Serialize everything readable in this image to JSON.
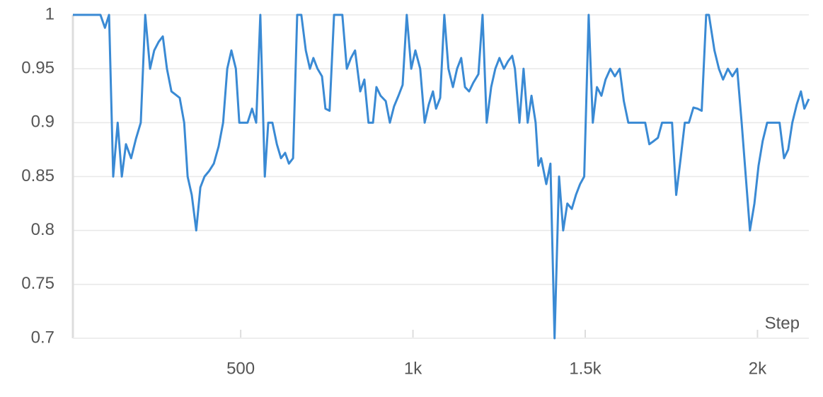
{
  "chart_data": {
    "type": "line",
    "x_label": "Step",
    "x": [
      13,
      93,
      106,
      118,
      130,
      143,
      155,
      167,
      182,
      196,
      210,
      223,
      237,
      249,
      262,
      274,
      286,
      299,
      311,
      323,
      336,
      346,
      358,
      371,
      383,
      395,
      408,
      422,
      436,
      449,
      461,
      473,
      486,
      496,
      508,
      520,
      533,
      545,
      557,
      570,
      580,
      592,
      605,
      617,
      629,
      640,
      652,
      664,
      676,
      689,
      701,
      711,
      723,
      736,
      746,
      758,
      771,
      783,
      795,
      808,
      820,
      832,
      847,
      859,
      871,
      884,
      894,
      906,
      921,
      933,
      945,
      958,
      970,
      982,
      995,
      1007,
      1021,
      1034,
      1046,
      1058,
      1067,
      1079,
      1091,
      1103,
      1116,
      1128,
      1140,
      1151,
      1163,
      1175,
      1190,
      1202,
      1214,
      1227,
      1239,
      1251,
      1264,
      1276,
      1288,
      1296,
      1309,
      1321,
      1333,
      1344,
      1356,
      1364,
      1372,
      1387,
      1399,
      1411,
      1424,
      1436,
      1448,
      1461,
      1473,
      1485,
      1497,
      1510,
      1522,
      1534,
      1547,
      1559,
      1573,
      1586,
      1600,
      1612,
      1625,
      1637,
      1649,
      1662,
      1674,
      1686,
      1699,
      1711,
      1723,
      1736,
      1752,
      1764,
      1777,
      1789,
      1801,
      1814,
      1826,
      1838,
      1851,
      1859,
      1875,
      1888,
      1900,
      1914,
      1927,
      1941,
      1954,
      1966,
      1978,
      1991,
      2003,
      2015,
      2028,
      2040,
      2052,
      2064,
      2077,
      2089,
      2101,
      2114,
      2126,
      2136,
      2149
    ],
    "values": [
      1,
      1,
      0.988,
      1,
      0.85,
      0.9,
      0.85,
      0.88,
      0.867,
      0.885,
      0.9,
      1,
      0.95,
      0.967,
      0.975,
      0.98,
      0.95,
      0.929,
      0.926,
      0.923,
      0.9,
      0.85,
      0.833,
      0.8,
      0.84,
      0.85,
      0.855,
      0.862,
      0.878,
      0.9,
      0.95,
      0.967,
      0.95,
      0.9,
      0.9,
      0.9,
      0.913,
      0.9,
      1,
      0.85,
      0.9,
      0.9,
      0.88,
      0.867,
      0.872,
      0.862,
      0.867,
      1,
      1,
      0.967,
      0.95,
      0.96,
      0.95,
      0.943,
      0.913,
      0.911,
      1,
      1,
      1,
      0.95,
      0.96,
      0.967,
      0.929,
      0.94,
      0.9,
      0.9,
      0.933,
      0.925,
      0.92,
      0.9,
      0.915,
      0.925,
      0.935,
      1,
      0.95,
      0.967,
      0.95,
      0.9,
      0.917,
      0.929,
      0.913,
      0.923,
      1,
      0.95,
      0.933,
      0.95,
      0.96,
      0.933,
      0.929,
      0.937,
      0.945,
      1,
      0.9,
      0.933,
      0.95,
      0.96,
      0.95,
      0.957,
      0.962,
      0.95,
      0.9,
      0.95,
      0.9,
      0.925,
      0.9,
      0.86,
      0.867,
      0.843,
      0.862,
      0.7,
      0.85,
      0.8,
      0.825,
      0.82,
      0.833,
      0.843,
      0.85,
      1,
      0.9,
      0.933,
      0.925,
      0.94,
      0.95,
      0.943,
      0.95,
      0.92,
      0.9,
      0.9,
      0.9,
      0.9,
      0.9,
      0.88,
      0.883,
      0.886,
      0.9,
      0.9,
      0.9,
      0.833,
      0.867,
      0.9,
      0.9,
      0.914,
      0.913,
      0.911,
      1,
      1,
      0.967,
      0.95,
      0.94,
      0.95,
      0.943,
      0.95,
      0.9,
      0.85,
      0.8,
      0.825,
      0.86,
      0.883,
      0.9,
      0.9,
      0.9,
      0.9,
      0.867,
      0.875,
      0.9,
      0.917,
      0.929,
      0.913,
      0.922
    ],
    "color": "#3a8ad4",
    "xlim": [
      13,
      2149
    ],
    "ylim": [
      0.7,
      1
    ],
    "xticks": [
      500,
      {
        "value": 1000,
        "label": "1k"
      },
      {
        "value": 1500,
        "label": "1.5k"
      },
      {
        "value": 2000,
        "label": "2k"
      }
    ],
    "yticks": [
      0.7,
      0.75,
      0.8,
      0.85,
      0.9,
      0.95,
      1
    ],
    "grid": true
  }
}
